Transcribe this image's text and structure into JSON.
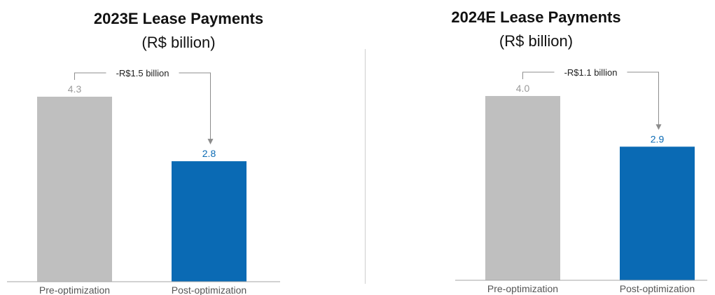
{
  "colors": {
    "pre": "#bfbfbf",
    "post": "#0a6ab4",
    "pre_label": "#9a9a9a",
    "axis": "#a6a6a6",
    "connector": "#8c8c8c"
  },
  "chart_data": [
    {
      "type": "bar",
      "title": "2023E Lease Payments",
      "subtitle": "(R$ billion)",
      "categories": [
        "Pre-optimization",
        "Post-optimization"
      ],
      "values": [
        4.3,
        2.8
      ],
      "data_labels": [
        "4.3",
        "2.8"
      ],
      "annotation": "-R$1.5 billion",
      "ylim": [
        0,
        4.3
      ],
      "grid": false
    },
    {
      "type": "bar",
      "title": "2024E Lease Payments",
      "subtitle": "(R$ billion)",
      "categories": [
        "Pre-optimization",
        "Post-optimization"
      ],
      "values": [
        4.0,
        2.9
      ],
      "data_labels": [
        "4.0",
        "2.9"
      ],
      "annotation": "-R$1.1 billion",
      "ylim": [
        0,
        4.0
      ],
      "grid": false
    }
  ]
}
